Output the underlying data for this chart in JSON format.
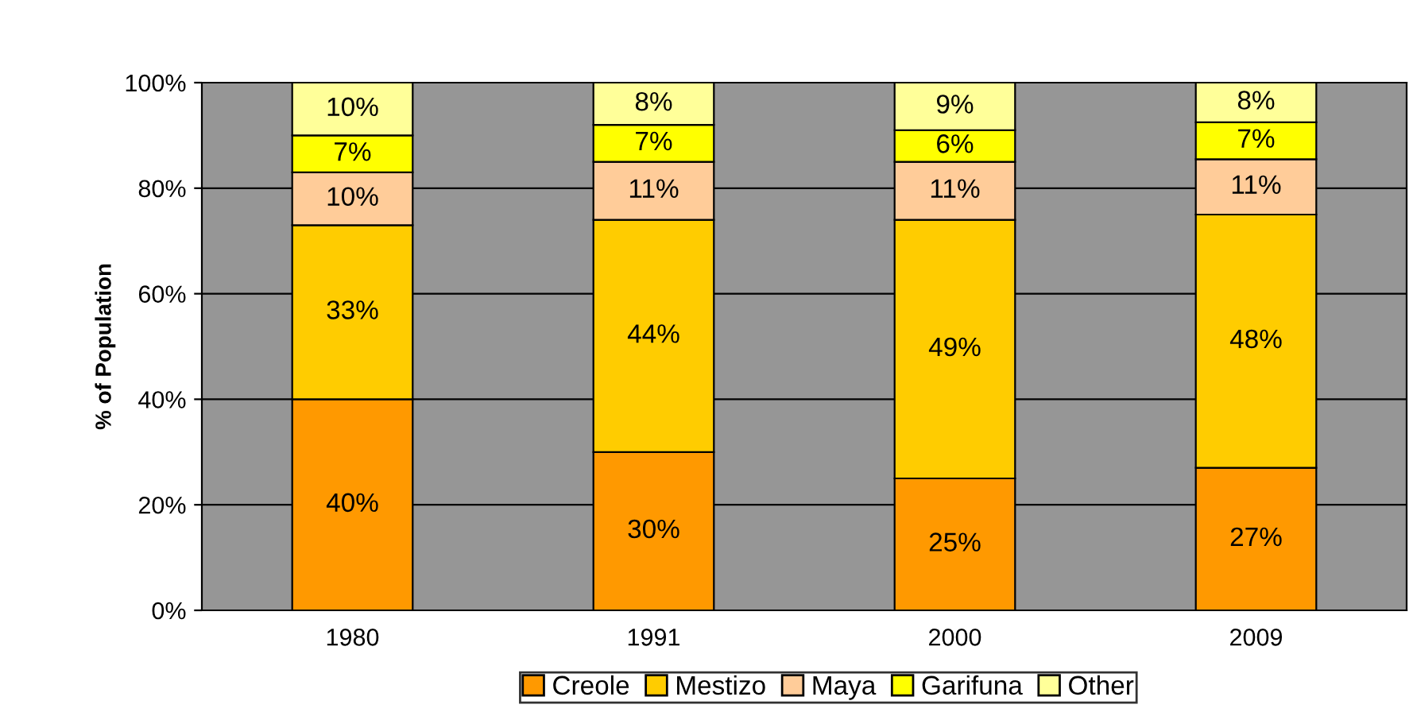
{
  "chart_data": {
    "type": "bar",
    "stacked": true,
    "ylabel": "% of Population",
    "categories": [
      "1980",
      "1991",
      "2000",
      "2009"
    ],
    "series": [
      {
        "name": "Creole",
        "color": "#ff9900",
        "values": [
          40,
          30,
          25,
          27
        ],
        "value_labels": [
          "40%",
          "30%",
          "25%",
          "27%"
        ]
      },
      {
        "name": "Mestizo",
        "color": "#ffcc00",
        "values": [
          33,
          44,
          49,
          48
        ],
        "value_labels": [
          "33%",
          "44%",
          "49%",
          "48%"
        ]
      },
      {
        "name": "Maya",
        "color": "#ffcc99",
        "values": [
          10,
          11,
          11,
          10.5
        ],
        "value_labels": [
          "10%",
          "11%",
          "11%",
          "11%"
        ]
      },
      {
        "name": "Garifuna",
        "color": "#ffff00",
        "values": [
          7,
          7,
          6,
          7
        ],
        "value_labels": [
          "7%",
          "7%",
          "6%",
          "7%"
        ]
      },
      {
        "name": "Other",
        "color": "#ffff99",
        "values": [
          10,
          8,
          9,
          7.5
        ],
        "value_labels": [
          "10%",
          "8%",
          "9%",
          "8%"
        ]
      }
    ],
    "ylim": [
      0,
      100
    ],
    "yticks": [
      {
        "value": 0,
        "label": "0%"
      },
      {
        "value": 20,
        "label": "20%"
      },
      {
        "value": 40,
        "label": "40%"
      },
      {
        "value": 60,
        "label": "60%"
      },
      {
        "value": 80,
        "label": "80%"
      },
      {
        "value": 100,
        "label": "100%"
      }
    ],
    "grid": "y",
    "legend": "bottom"
  }
}
